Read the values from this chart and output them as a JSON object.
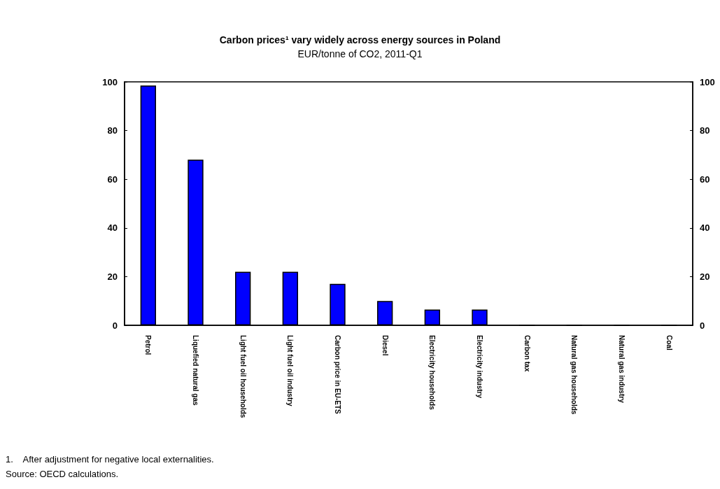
{
  "chart_data": {
    "type": "bar",
    "title": "Carbon prices¹ vary widely across energy sources in Poland",
    "subtitle": "EUR/tonne of CO2, 2011-Q1",
    "categories": [
      "Petrol",
      "Liquefied natural gas",
      "Light fuel oil households",
      "Light fuel oil industry",
      "Carbon price in EU-ETS",
      "Diesel",
      "Electricity households",
      "Electricity industry",
      "Carbon tax",
      "Natural gas households",
      "Natural gas industry",
      "Coal"
    ],
    "values": [
      98.5,
      68,
      22,
      22,
      17,
      10,
      6.5,
      6.5,
      0,
      0,
      0,
      0
    ],
    "color": "#0000ff",
    "ylim": [
      0,
      100
    ],
    "yticks": [
      0,
      20,
      40,
      60,
      80,
      100
    ],
    "y2lim": [
      0,
      100
    ],
    "y2ticks": [
      0,
      20,
      40,
      60,
      80,
      100
    ],
    "grid": false,
    "annotations": [
      "1.    After adjustment for negative local externalities.",
      "Source: OECD calculations."
    ]
  }
}
